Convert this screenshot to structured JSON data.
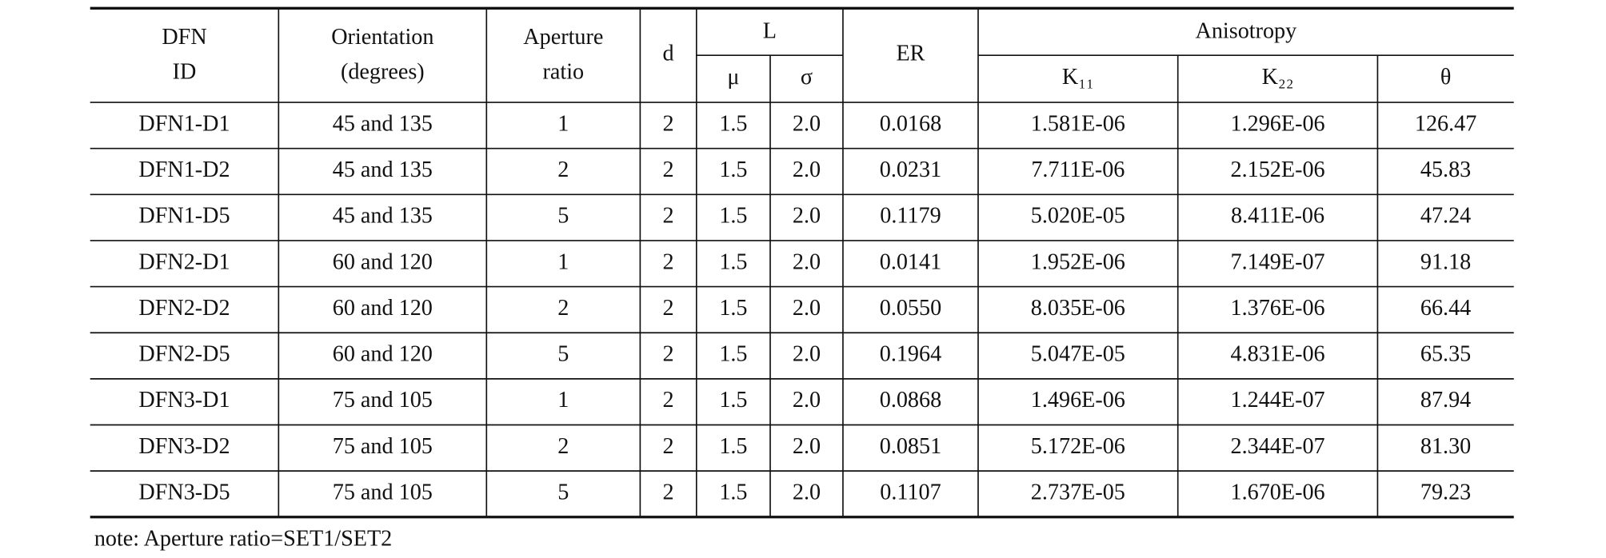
{
  "table": {
    "headers": [
      {
        "lines": [
          "DFN",
          "ID"
        ]
      },
      {
        "lines": [
          "Orientation",
          "(degrees)"
        ]
      },
      {
        "lines": [
          "Aperture",
          "ratio"
        ]
      },
      {
        "lines": [
          "d"
        ]
      },
      {
        "lines": [
          "L"
        ],
        "sub": [
          "μ",
          "σ"
        ]
      },
      {
        "lines": [
          "ER"
        ]
      },
      {
        "lines": [
          "Anisotropy"
        ],
        "sub": [
          "K₁₁",
          "K₂₂",
          "θ"
        ]
      }
    ],
    "rows": [
      [
        "DFN1-D1",
        "45  and  135",
        "1",
        "2",
        "1.5",
        "2.0",
        "0.0168",
        "1.581E-06",
        "1.296E-06",
        "126.47"
      ],
      [
        "DFN1-D2",
        "45  and  135",
        "2",
        "2",
        "1.5",
        "2.0",
        "0.0231",
        "7.711E-06",
        "2.152E-06",
        "45.83"
      ],
      [
        "DFN1-D5",
        "45  and  135",
        "5",
        "2",
        "1.5",
        "2.0",
        "0.1179",
        "5.020E-05",
        "8.411E-06",
        "47.24"
      ],
      [
        "DFN2-D1",
        "60  and  120",
        "1",
        "2",
        "1.5",
        "2.0",
        "0.0141",
        "1.952E-06",
        "7.149E-07",
        "91.18"
      ],
      [
        "DFN2-D2",
        "60  and  120",
        "2",
        "2",
        "1.5",
        "2.0",
        "0.0550",
        "8.035E-06",
        "1.376E-06",
        "66.44"
      ],
      [
        "DFN2-D5",
        "60  and  120",
        "5",
        "2",
        "1.5",
        "2.0",
        "0.1964",
        "5.047E-05",
        "4.831E-06",
        "65.35"
      ],
      [
        "DFN3-D1",
        "75  and  105",
        "1",
        "2",
        "1.5",
        "2.0",
        "0.0868",
        "1.496E-06",
        "1.244E-07",
        "87.94"
      ],
      [
        "DFN3-D2",
        "75  and  105",
        "2",
        "2",
        "1.5",
        "2.0",
        "0.0851",
        "5.172E-06",
        "2.344E-07",
        "81.30"
      ],
      [
        "DFN3-D5",
        "75  and  105",
        "5",
        "2",
        "1.5",
        "2.0",
        "0.1107",
        "2.737E-05",
        "1.670E-06",
        "79.23"
      ]
    ]
  },
  "note": "note:  Aperture  ratio=SET1/SET2"
}
